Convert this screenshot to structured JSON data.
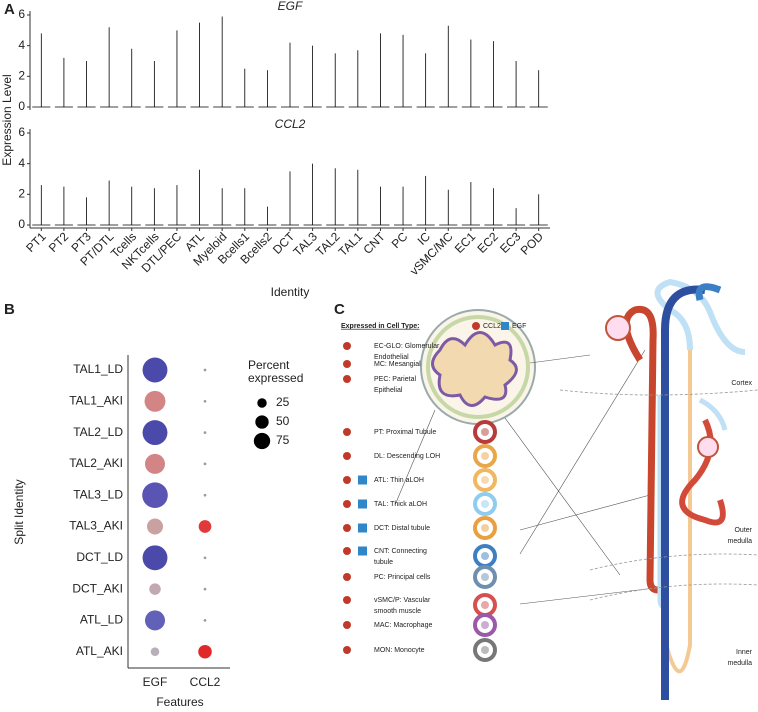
{
  "chart_data": [
    {
      "type": "violin",
      "title": "EGF",
      "ylabel": "Expression Level",
      "color": "#000000",
      "values": [
        4.8,
        3.2,
        3.0,
        5.2,
        3.8,
        3.0,
        5.0,
        5.5,
        5.9,
        2.5,
        2.4,
        4.2,
        4.0,
        3.5,
        3.7,
        4.8,
        4.7,
        3.5,
        5.3,
        4.4,
        4.3,
        3.0,
        2.4
      ],
      "ylim": [
        0,
        6
      ],
      "yticks": [
        0,
        2,
        4,
        6
      ]
    },
    {
      "type": "violin",
      "title": "CCL2",
      "xlabel": "Identity",
      "color": "#000000",
      "categories": [
        "PT1",
        "PT2",
        "PT3",
        "PT/DTL",
        "Tcells",
        "NKTcells",
        "DTL/PEC",
        "ATL",
        "Myeloid",
        "Bcells1",
        "Bcells2",
        "DCT",
        "TAL3",
        "TAL2",
        "TAL1",
        "CNT",
        "PC",
        "IC",
        "vSMC/MC",
        "EC1",
        "EC2",
        "EC3",
        "POD"
      ],
      "values": [
        2.6,
        2.5,
        1.8,
        2.9,
        2.5,
        2.4,
        2.6,
        3.6,
        2.4,
        2.4,
        1.2,
        3.5,
        4.0,
        3.7,
        3.6,
        2.5,
        2.5,
        3.2,
        2.3,
        2.8,
        2.4,
        1.1,
        2.0
      ],
      "ylim": [
        0,
        6
      ],
      "yticks": [
        0,
        2,
        4,
        6
      ]
    },
    {
      "type": "dot",
      "xlabel": "Features",
      "ylabel": "Split Identity",
      "categories": [
        "TAL1_LD",
        "TAL1_AKI",
        "TAL2_LD",
        "TAL2_AKI",
        "TAL3_LD",
        "TAL3_AKI",
        "DCT_LD",
        "DCT_AKI",
        "ATL_LD",
        "ATL_AKI"
      ],
      "series": [
        {
          "name": "EGF",
          "values": [
            85,
            60,
            85,
            55,
            90,
            35,
            85,
            18,
            55,
            10
          ],
          "colors": [
            "#4b4aab",
            "#d38585",
            "#4b4aab",
            "#d38585",
            "#5a55b5",
            "#c9a1a1",
            "#4b4aab",
            "#c2a8b0",
            "#6161b8",
            "#b8b0b8"
          ]
        },
        {
          "name": "CCL2",
          "values": [
            1,
            1,
            1,
            1,
            1,
            22,
            1,
            1,
            1,
            25
          ],
          "colors": [
            "#9a9a9a",
            "#9a9a9a",
            "#9a9a9a",
            "#9a9a9a",
            "#9a9a9a",
            "#e23a3a",
            "#9a9a9a",
            "#9a9a9a",
            "#9a9a9a",
            "#e02828"
          ]
        }
      ],
      "size_legend": {
        "title": [
          "Percent",
          "expressed"
        ],
        "values": [
          25,
          50,
          75
        ]
      }
    }
  ],
  "panel_labels": [
    "A",
    "B",
    "C"
  ],
  "diagram": {
    "legend": {
      "title": "Expressed in Cell Type:",
      "ccl2": "CCL2",
      "egf": "EGF"
    },
    "items": [
      {
        "label": [
          "EC-GLO: Glomerular",
          "Endothelial"
        ],
        "ccl2": true,
        "egf": false
      },
      {
        "label": [
          "MC: Mesangial"
        ],
        "ccl2": true,
        "egf": false
      },
      {
        "label": [
          "PEC: Parietal",
          "Epithelial"
        ],
        "ccl2": true,
        "egf": false
      },
      {
        "label": [
          "PT: Proximal Tubule"
        ],
        "ccl2": true,
        "egf": false,
        "icon": "#b83a3a"
      },
      {
        "label": [
          "DL: Descending LOH"
        ],
        "ccl2": true,
        "egf": false,
        "icon": "#e9a64a"
      },
      {
        "label": [
          "ATL: Thin aLOH"
        ],
        "ccl2": true,
        "egf": true,
        "icon": "#f0b860"
      },
      {
        "label": [
          "TAL: Thick aLOH"
        ],
        "ccl2": true,
        "egf": true,
        "icon": "#8fcdf0"
      },
      {
        "label": [
          "DCT: Distal tubule"
        ],
        "ccl2": true,
        "egf": true,
        "icon": "#e8a040"
      },
      {
        "label": [
          "CNT: Connecting",
          "tubule"
        ],
        "ccl2": true,
        "egf": true,
        "icon": "#3d7fc0"
      },
      {
        "label": [
          "PC: Principal cells"
        ],
        "ccl2": true,
        "egf": false,
        "icon": "#6f8fb0"
      },
      {
        "label": [
          "vSMC/P: Vascular",
          "smooth muscle"
        ],
        "ccl2": true,
        "egf": false,
        "icon": "#d65050"
      },
      {
        "label": [
          "MAC: Macrophage"
        ],
        "ccl2": true,
        "egf": false,
        "icon": "#9b5aa8"
      },
      {
        "label": [
          "MON: Monocyte"
        ],
        "ccl2": true,
        "egf": false,
        "icon": "#777777"
      }
    ],
    "zones": [
      [
        "Cortex"
      ],
      [
        "Outer",
        "medulla"
      ],
      [
        "Inner",
        "medulla"
      ]
    ]
  }
}
